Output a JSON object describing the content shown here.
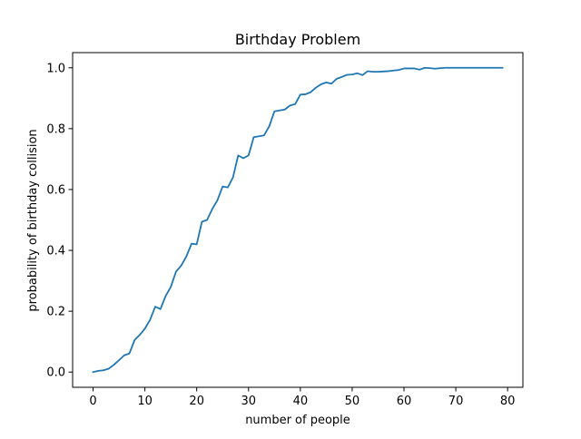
{
  "chart_data": {
    "type": "line",
    "title": "Birthday Problem",
    "xlabel": "number of people",
    "ylabel": "probability of birthday collision",
    "xlim": [
      -3.95,
      82.95
    ],
    "ylim": [
      -0.05,
      1.05
    ],
    "xticks": [
      0,
      10,
      20,
      30,
      40,
      50,
      60,
      70,
      80
    ],
    "yticks": [
      0.0,
      0.2,
      0.4,
      0.6,
      0.8,
      1.0
    ],
    "xtick_labels": [
      "0",
      "10",
      "20",
      "30",
      "40",
      "50",
      "60",
      "70",
      "80"
    ],
    "ytick_labels": [
      "0.0",
      "0.2",
      "0.4",
      "0.6",
      "0.8",
      "1.0"
    ],
    "grid": false,
    "series": [
      {
        "color": "#1f77b4",
        "x": [
          0,
          1,
          2,
          3,
          4,
          5,
          6,
          7,
          8,
          9,
          10,
          11,
          12,
          13,
          14,
          15,
          16,
          17,
          18,
          19,
          20,
          21,
          22,
          23,
          24,
          25,
          26,
          27,
          28,
          29,
          30,
          31,
          32,
          33,
          34,
          35,
          36,
          37,
          38,
          39,
          40,
          41,
          42,
          43,
          44,
          45,
          46,
          47,
          48,
          49,
          50,
          51,
          52,
          53,
          54,
          55,
          56,
          57,
          58,
          59,
          60,
          61,
          62,
          63,
          64,
          65,
          66,
          67,
          68,
          69,
          70,
          71,
          72,
          73,
          74,
          75,
          76,
          77,
          78,
          79
        ],
        "y": [
          0.0,
          0.004,
          0.006,
          0.011,
          0.024,
          0.039,
          0.055,
          0.061,
          0.105,
          0.122,
          0.143,
          0.172,
          0.215,
          0.207,
          0.25,
          0.28,
          0.33,
          0.35,
          0.38,
          0.422,
          0.42,
          0.494,
          0.5,
          0.536,
          0.565,
          0.61,
          0.607,
          0.64,
          0.712,
          0.703,
          0.712,
          0.772,
          0.775,
          0.778,
          0.808,
          0.857,
          0.86,
          0.863,
          0.876,
          0.881,
          0.912,
          0.913,
          0.92,
          0.935,
          0.946,
          0.952,
          0.948,
          0.964,
          0.97,
          0.977,
          0.978,
          0.982,
          0.976,
          0.989,
          0.987,
          0.987,
          0.988,
          0.989,
          0.991,
          0.993,
          0.998,
          0.998,
          0.998,
          0.994,
          1.0,
          0.999,
          0.997,
          0.999,
          1.0,
          1.0,
          1.0,
          1.0,
          1.0,
          1.0,
          1.0,
          1.0,
          1.0,
          1.0,
          1.0,
          1.0
        ]
      }
    ]
  }
}
